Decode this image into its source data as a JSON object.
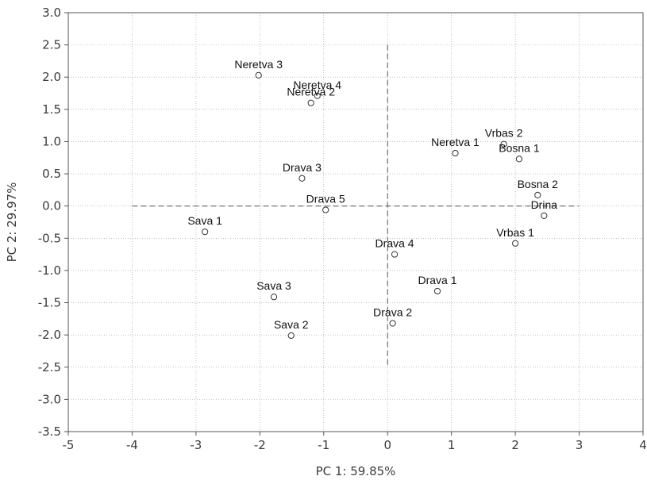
{
  "chart_data": {
    "type": "scatter",
    "xlabel": "PC 1: 59.85%",
    "ylabel": "PC 2: 29.97%",
    "xlim": [
      -5,
      4
    ],
    "ylim": [
      -3.5,
      3.0
    ],
    "x_ticks": [
      -5,
      -4,
      -3,
      -2,
      -1,
      0,
      1,
      2,
      3,
      4
    ],
    "y_ticks": [
      3.0,
      2.5,
      2.0,
      1.5,
      1.0,
      0.5,
      0.0,
      -0.5,
      -1.0,
      -1.5,
      -2.0,
      -2.5,
      -3.0,
      -3.5
    ],
    "x_tick_labels": [
      "-5",
      "-4",
      "-3",
      "-2",
      "-1",
      "0",
      "1",
      "2",
      "3",
      "4"
    ],
    "y_tick_labels": [
      "3.0",
      "2.5",
      "2.0",
      "1.5",
      "1.0",
      "0.5",
      "0.0",
      "-0.5",
      "-1.0",
      "-1.5",
      "-2.0",
      "-2.5",
      "-3.0",
      "-3.5"
    ],
    "grid": true,
    "reference_lines": {
      "x_zero": [
        -2.5,
        2.5
      ],
      "y_zero": [
        -4,
        3
      ]
    },
    "points": [
      {
        "label": "Neretva 3",
        "x": -2.02,
        "y": 2.03
      },
      {
        "label": "Neretva 4",
        "x": -1.1,
        "y": 1.71
      },
      {
        "label": "Neretva 2",
        "x": -1.2,
        "y": 1.6
      },
      {
        "label": "Neretva 1",
        "x": 1.06,
        "y": 0.82
      },
      {
        "label": "Vrbas 2",
        "x": 1.82,
        "y": 0.96
      },
      {
        "label": "Bosna 1",
        "x": 2.06,
        "y": 0.73
      },
      {
        "label": "Bosna 2",
        "x": 2.35,
        "y": 0.17
      },
      {
        "label": "Drina",
        "x": 2.45,
        "y": -0.15
      },
      {
        "label": "Vrbas 1",
        "x": 2.0,
        "y": -0.58
      },
      {
        "label": "Drava 3",
        "x": -1.34,
        "y": 0.43
      },
      {
        "label": "Drava 5",
        "x": -0.97,
        "y": -0.06
      },
      {
        "label": "Drava 4",
        "x": 0.11,
        "y": -0.75
      },
      {
        "label": "Drava 1",
        "x": 0.78,
        "y": -1.32
      },
      {
        "label": "Drava 2",
        "x": 0.08,
        "y": -1.82
      },
      {
        "label": "Sava 1",
        "x": -2.86,
        "y": -0.4
      },
      {
        "label": "Sava 3",
        "x": -1.78,
        "y": -1.41
      },
      {
        "label": "Sava 2",
        "x": -1.51,
        "y": -2.01
      }
    ]
  }
}
